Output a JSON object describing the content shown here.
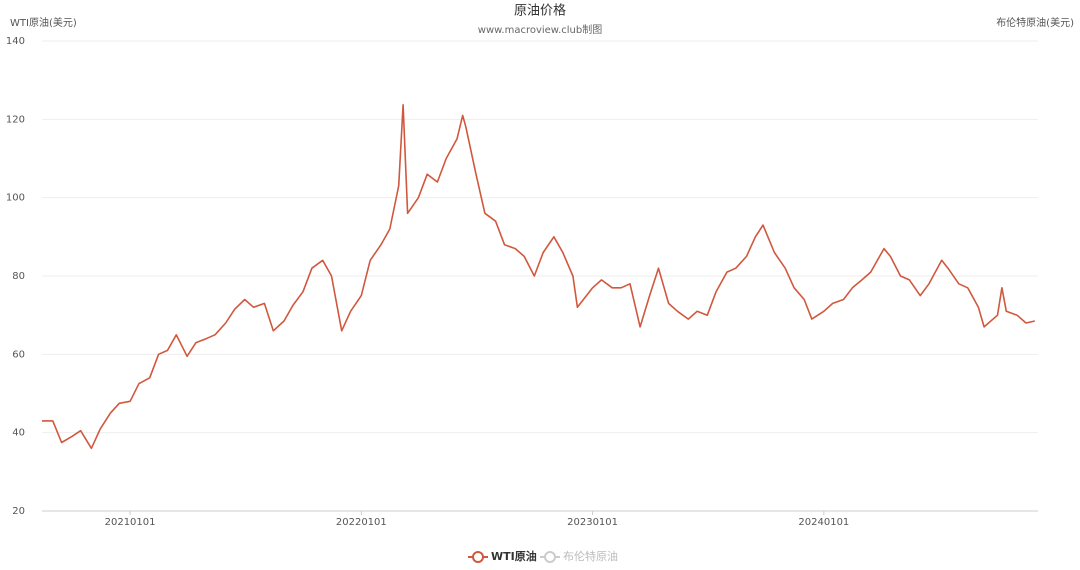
{
  "chart_data": {
    "type": "line",
    "title": "原油价格",
    "subtitle": "www.macroview.club制图",
    "y_label": "WTI原油(美元)",
    "y2_label": "布伦特原油(美元)",
    "x": [
      "20200815",
      "20200901",
      "20200915",
      "20201001",
      "20201015",
      "20201101",
      "20201115",
      "20201201",
      "20201215",
      "20210101",
      "20210115",
      "20210201",
      "20210215",
      "20210301",
      "20210315",
      "20210401",
      "20210415",
      "20210501",
      "20210515",
      "20210601",
      "20210615",
      "20210701",
      "20210715",
      "20210801",
      "20210815",
      "20210901",
      "20210915",
      "20211001",
      "20211015",
      "20211101",
      "20211115",
      "20211201",
      "20211215",
      "20220101",
      "20220115",
      "20220201",
      "20220215",
      "20220301",
      "20220308",
      "20220315",
      "20220401",
      "20220415",
      "20220501",
      "20220515",
      "20220601",
      "20220610",
      "20220615",
      "20220701",
      "20220715",
      "20220801",
      "20220815",
      "20220901",
      "20220915",
      "20221001",
      "20221015",
      "20221101",
      "20221115",
      "20221201",
      "20221208",
      "20230101",
      "20230115",
      "20230201",
      "20230215",
      "20230301",
      "20230317",
      "20230401",
      "20230415",
      "20230501",
      "20230515",
      "20230601",
      "20230615",
      "20230701",
      "20230715",
      "20230801",
      "20230815",
      "20230901",
      "20230915",
      "20230927",
      "20231015",
      "20231101",
      "20231115",
      "20231201",
      "20231213",
      "20240101",
      "20240115",
      "20240201",
      "20240215",
      "20240301",
      "20240315",
      "20240405",
      "20240415",
      "20240501",
      "20240515",
      "20240601",
      "20240615",
      "20240705",
      "20240715",
      "20240801",
      "20240815",
      "20240901",
      "20240910",
      "20241001",
      "20241008",
      "20241015",
      "20241101",
      "20241115",
      "20241129"
    ],
    "series": [
      {
        "name": "WTI原油",
        "color": "#d0583e",
        "values": [
          43,
          43,
          37.5,
          39,
          40.5,
          36,
          41,
          45,
          47.5,
          48,
          52.5,
          54,
          60,
          61,
          65,
          59.5,
          63,
          64,
          65,
          68,
          71.5,
          74,
          72,
          73,
          66,
          68.5,
          72.5,
          76,
          82,
          84,
          80,
          66,
          71,
          75,
          84,
          88,
          92,
          103,
          123.7,
          96,
          100,
          106,
          104,
          110,
          115,
          121,
          118,
          106,
          96,
          94,
          88,
          87,
          85,
          80,
          86,
          90,
          86,
          80,
          72,
          77,
          79,
          77,
          77,
          78,
          67,
          75,
          82,
          73,
          71,
          69,
          71,
          70,
          76,
          81,
          82,
          85,
          90,
          93,
          86,
          82,
          77,
          74,
          69,
          71,
          73,
          74,
          77,
          79,
          81,
          87,
          85,
          80,
          79,
          75,
          78,
          84,
          82,
          78,
          77,
          72,
          67,
          70,
          77,
          71,
          70,
          68,
          68.5
        ]
      },
      {
        "name": "布伦特原油",
        "color": "#cccccc",
        "visible": false
      }
    ],
    "xlim": [
      "20200815",
      "20241204"
    ],
    "xticks": [
      "20210101",
      "20220101",
      "20230101",
      "20240101"
    ],
    "ylim": [
      20,
      140
    ],
    "yticks": [
      20,
      40,
      60,
      80,
      100,
      120,
      140
    ],
    "grid": true
  }
}
